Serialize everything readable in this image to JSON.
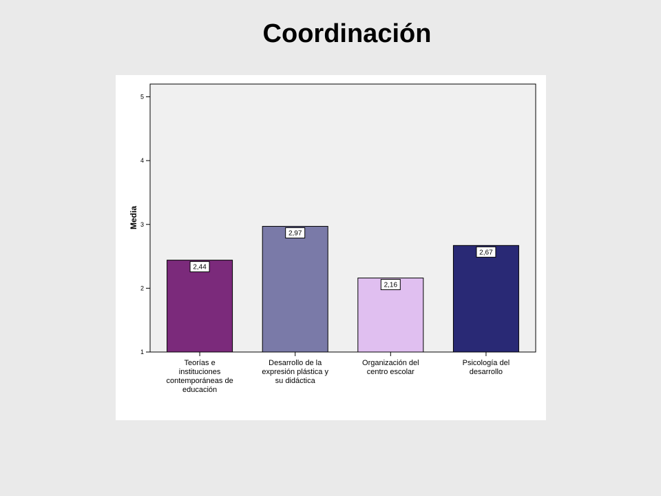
{
  "title": "Coordinación",
  "colors": {
    "plot_background": "#f0f0f0",
    "panel_background": "#ffffff",
    "bar_stroke": "#000000"
  },
  "chart_data": {
    "type": "bar",
    "title": "Coordinación",
    "xlabel": "",
    "ylabel": "Media",
    "ylim": [
      1,
      5.2
    ],
    "yticks": [
      1,
      2,
      3,
      4,
      5
    ],
    "grid": false,
    "categories": [
      "Teorías e instituciones contemporáneas de educación",
      "Desarrollo de la expresión plástica y su didáctica",
      "Organización del centro escolar",
      "Psicología del desarrollo"
    ],
    "category_lines": [
      [
        "Teorías e",
        "instituciones",
        "contemporáneas de",
        "educación"
      ],
      [
        "Desarrollo de la",
        "expresión plástica y",
        "su didáctica"
      ],
      [
        "Organización del",
        "centro escolar"
      ],
      [
        "Psicología del",
        "desarrollo"
      ]
    ],
    "values": [
      2.44,
      2.97,
      2.16,
      2.67
    ],
    "data_labels": [
      "2,44",
      "2,97",
      "2,16",
      "2,67"
    ],
    "bar_colors": [
      "#7b2a7b",
      "#7a7aa8",
      "#e0bff0",
      "#292975"
    ]
  }
}
